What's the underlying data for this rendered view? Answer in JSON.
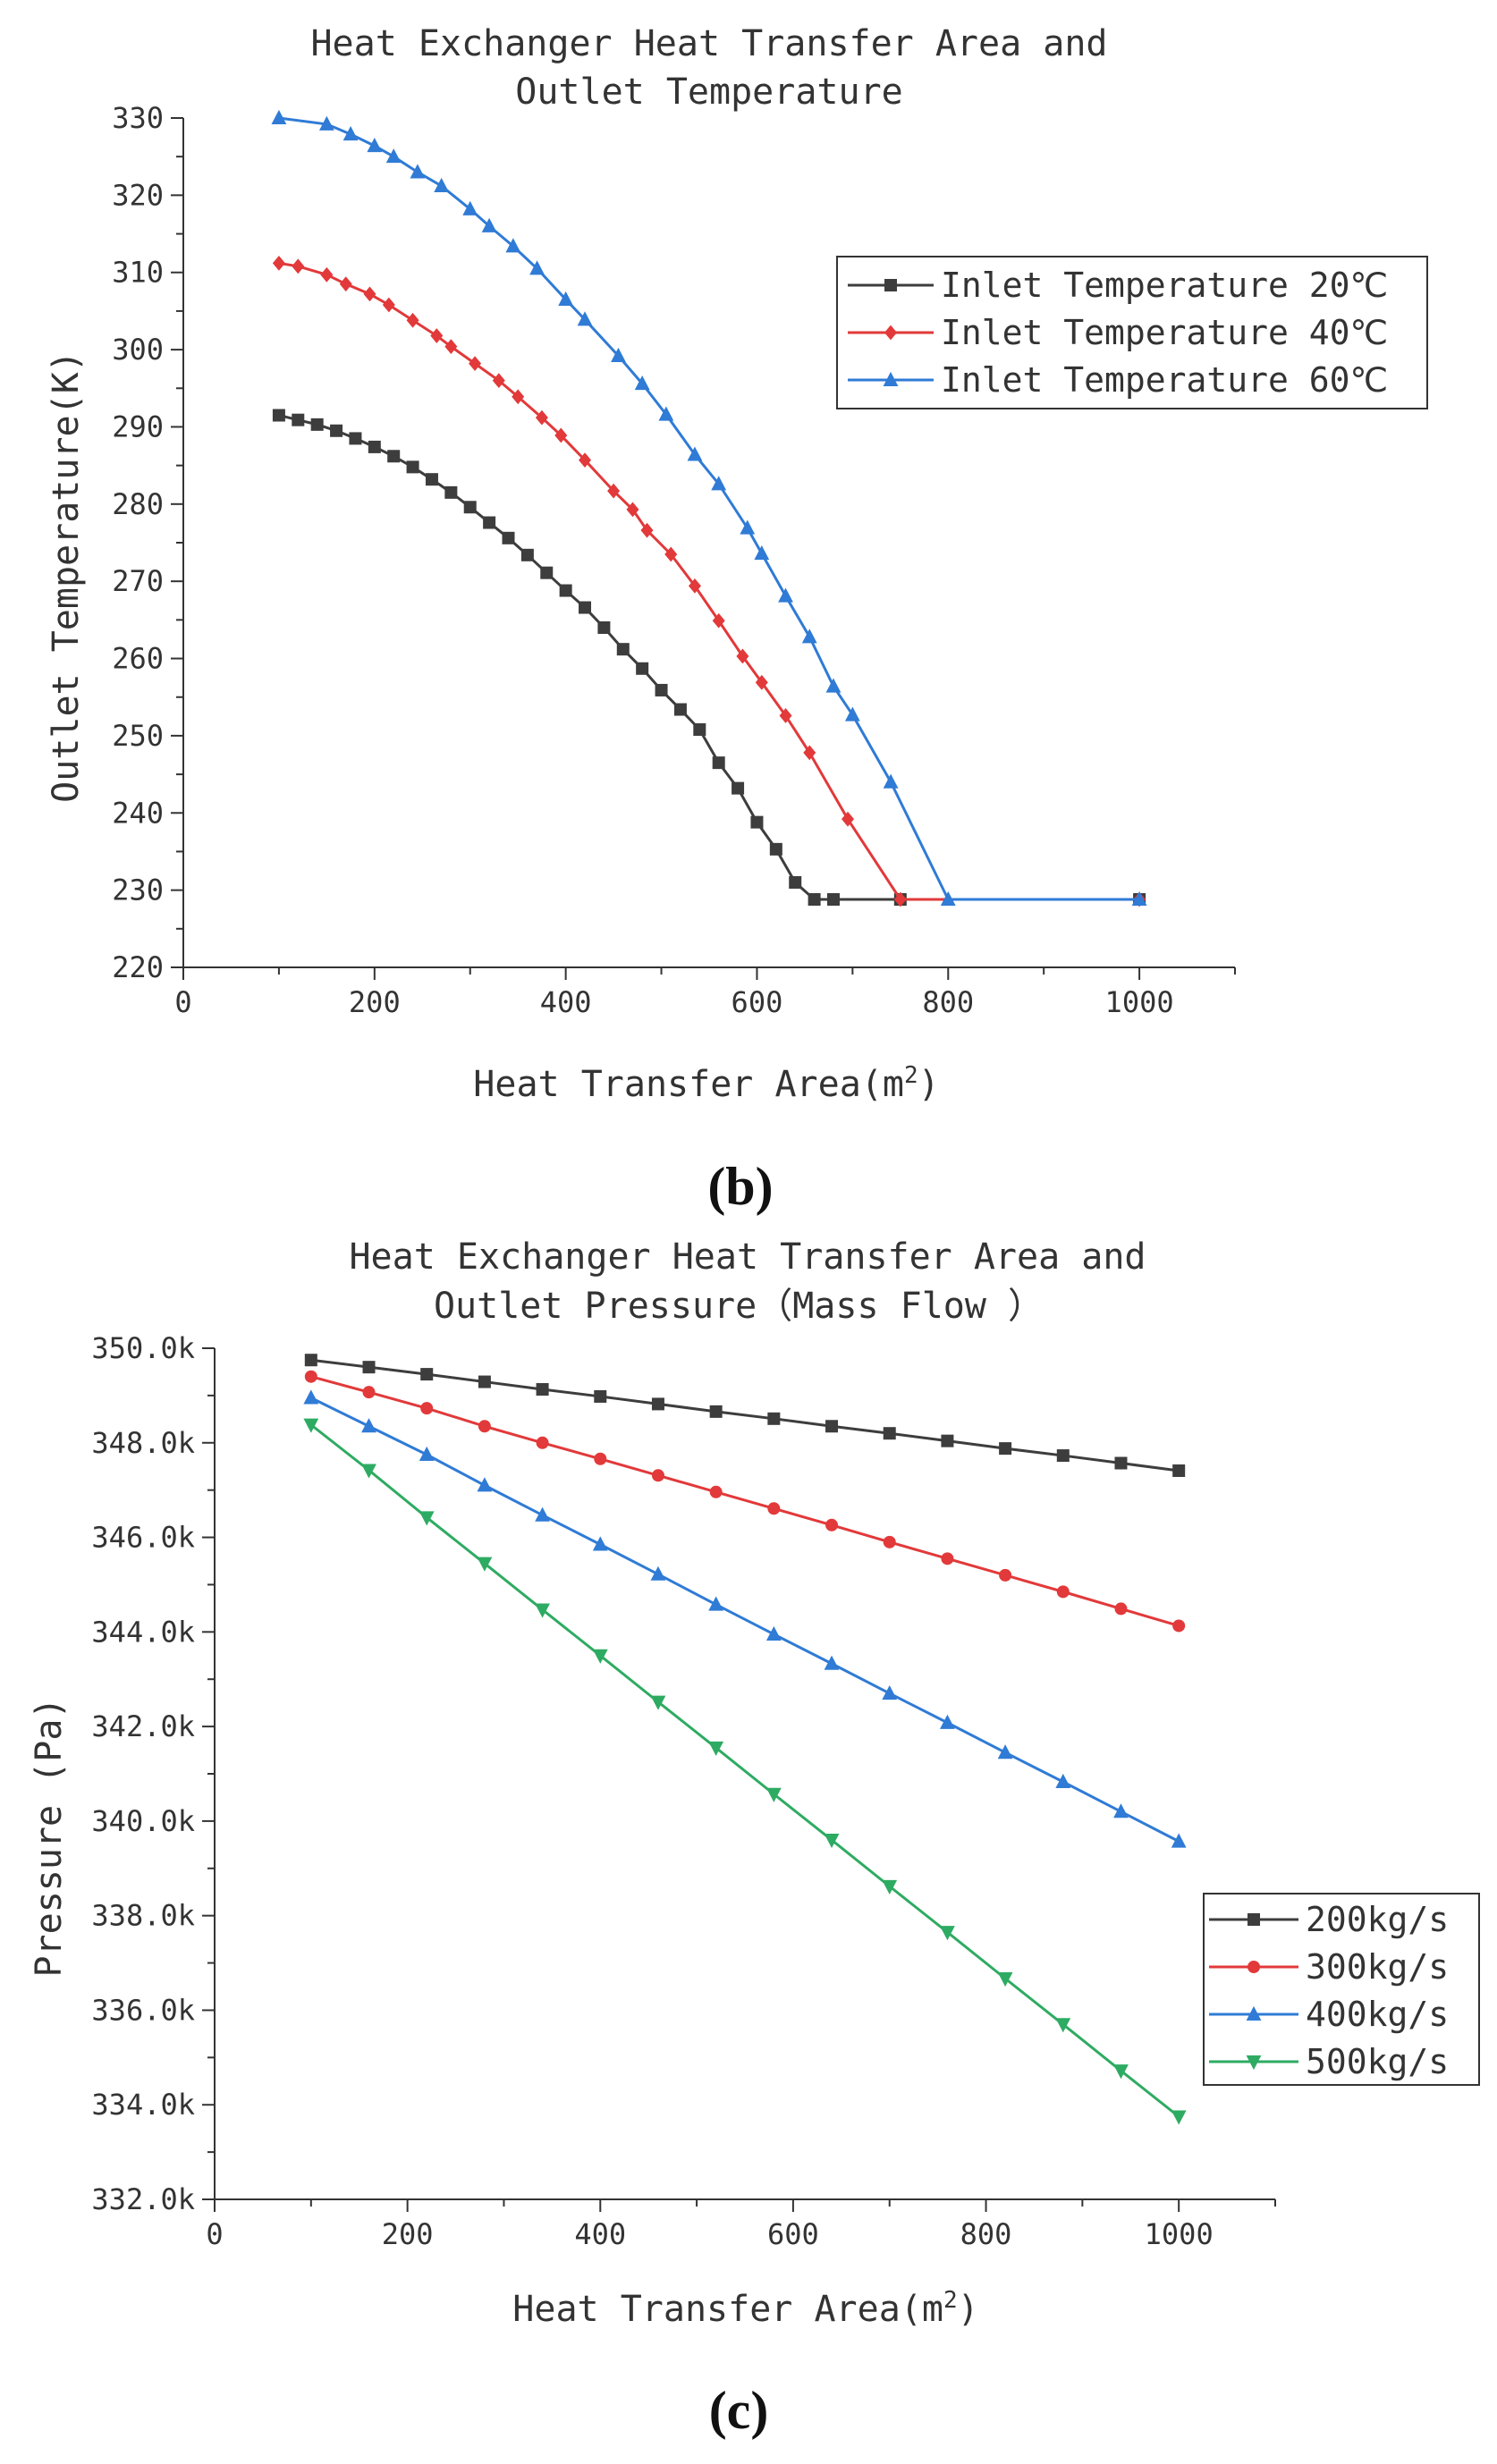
{
  "chart_data": [
    {
      "type": "line",
      "title_lines": [
        "Heat Exchanger Heat Transfer Area and",
        "Outlet Temperature"
      ],
      "xlabel": "Heat Transfer Area(m",
      "xlabel_sup": "2",
      "xlabel_close": ")",
      "ylabel": "Outlet Temperature(K)",
      "panel_label": "(b)",
      "xlim": [
        0,
        1100
      ],
      "ylim": [
        220,
        330
      ],
      "xticks": [
        0,
        200,
        400,
        600,
        800,
        1000
      ],
      "yticks": [
        220,
        230,
        240,
        250,
        260,
        270,
        280,
        290,
        300,
        310,
        320,
        330
      ],
      "ytick_labels": [
        "220",
        "230",
        "240",
        "250",
        "260",
        "270",
        "280",
        "290",
        "300",
        "310",
        "320",
        "330"
      ],
      "legend_position": "top-right",
      "series": [
        {
          "name": "Inlet Temperature 20℃",
          "color": "#3d3d3d",
          "marker": "square",
          "x": [
            100,
            120,
            140,
            160,
            180,
            200,
            220,
            240,
            260,
            280,
            300,
            320,
            340,
            360,
            380,
            400,
            420,
            440,
            460,
            480,
            500,
            520,
            540,
            560,
            580,
            600,
            620,
            640,
            660,
            680,
            750,
            1000
          ],
          "y": [
            291.5,
            290.9,
            290.3,
            289.5,
            288.5,
            287.4,
            286.2,
            284.8,
            283.2,
            281.5,
            279.6,
            277.6,
            275.6,
            273.4,
            271.1,
            268.8,
            266.6,
            264.0,
            261.2,
            258.7,
            255.9,
            253.4,
            250.8,
            246.5,
            243.2,
            238.8,
            235.3,
            231.0,
            228.8,
            228.8,
            228.8,
            228.8
          ]
        },
        {
          "name": "Inlet Temperature 40℃",
          "color": "#e2393a",
          "marker": "diamond",
          "x": [
            100,
            120,
            150,
            170,
            195,
            215,
            240,
            265,
            280,
            305,
            330,
            350,
            375,
            395,
            420,
            450,
            470,
            485,
            510,
            535,
            560,
            585,
            605,
            630,
            655,
            695,
            750,
            1000
          ],
          "y": [
            311.2,
            310.8,
            309.7,
            308.5,
            307.2,
            305.8,
            303.8,
            301.8,
            300.4,
            298.2,
            296.0,
            293.9,
            291.2,
            288.9,
            285.7,
            281.7,
            279.3,
            276.6,
            273.5,
            269.4,
            264.9,
            260.3,
            256.9,
            252.6,
            247.8,
            239.2,
            228.8,
            228.8
          ]
        },
        {
          "name": "Inlet Temperature 60℃",
          "color": "#2f7bd6",
          "marker": "triangle-up",
          "x": [
            100,
            150,
            175,
            200,
            220,
            245,
            270,
            300,
            320,
            345,
            370,
            400,
            420,
            455,
            480,
            505,
            535,
            560,
            590,
            605,
            630,
            655,
            680,
            700,
            740,
            800,
            1000
          ],
          "y": [
            330,
            329.2,
            327.9,
            326.4,
            325.0,
            323.0,
            321.2,
            318.2,
            316.0,
            313.4,
            310.5,
            306.5,
            303.9,
            299.2,
            295.6,
            291.6,
            286.4,
            282.6,
            276.9,
            273.6,
            268.1,
            262.8,
            256.4,
            252.7,
            244.0,
            228.8,
            228.8
          ]
        }
      ]
    },
    {
      "type": "line",
      "title_lines": [
        "Heat Exchanger Heat Transfer Area and",
        "Outlet Pressure（Mass Flow ）"
      ],
      "xlabel": "Heat Transfer Area(m",
      "xlabel_sup": "2",
      "xlabel_close": ")",
      "ylabel": "Pressure (Pa)",
      "panel_label": "(c)",
      "xlim": [
        0,
        1100
      ],
      "ylim": [
        332,
        350
      ],
      "xticks": [
        0,
        200,
        400,
        600,
        800,
        1000
      ],
      "yticks": [
        332,
        334,
        336,
        338,
        340,
        342,
        344,
        346,
        348,
        350
      ],
      "ytick_labels": [
        "332.0k",
        "334.0k",
        "336.0k",
        "338.0k",
        "340.0k",
        "342.0k",
        "344.0k",
        "346.0k",
        "348.0k",
        "350.0k"
      ],
      "legend_position": "bottom-right",
      "x": [
        100,
        160,
        220,
        280,
        340,
        400,
        460,
        520,
        580,
        640,
        700,
        760,
        820,
        880,
        940,
        1000
      ],
      "series": [
        {
          "name": "200kg/s",
          "color": "#3d3d3d",
          "marker": "square",
          "y": [
            349.75,
            349.6,
            349.45,
            349.29,
            349.13,
            348.98,
            348.82,
            348.66,
            348.51,
            348.35,
            348.2,
            348.04,
            347.88,
            347.73,
            347.57,
            347.41
          ]
        },
        {
          "name": "300kg/s",
          "color": "#e2393a",
          "marker": "circle",
          "y": [
            349.4,
            349.07,
            348.73,
            348.35,
            348.0,
            347.66,
            347.31,
            346.96,
            346.61,
            346.26,
            345.9,
            345.55,
            345.2,
            344.85,
            344.49,
            344.13
          ]
        },
        {
          "name": "400kg/s",
          "color": "#2f7bd6",
          "marker": "triangle-up",
          "y": [
            348.95,
            348.35,
            347.75,
            347.1,
            346.47,
            345.85,
            345.22,
            344.58,
            343.95,
            343.33,
            342.7,
            342.08,
            341.45,
            340.83,
            340.2,
            339.57
          ]
        },
        {
          "name": "500kg/s",
          "color": "#2eab62",
          "marker": "triangle-down",
          "y": [
            348.38,
            347.42,
            346.42,
            345.45,
            344.47,
            343.5,
            342.52,
            341.55,
            340.57,
            339.6,
            338.62,
            337.65,
            336.67,
            335.7,
            334.72,
            333.75
          ]
        }
      ]
    }
  ]
}
